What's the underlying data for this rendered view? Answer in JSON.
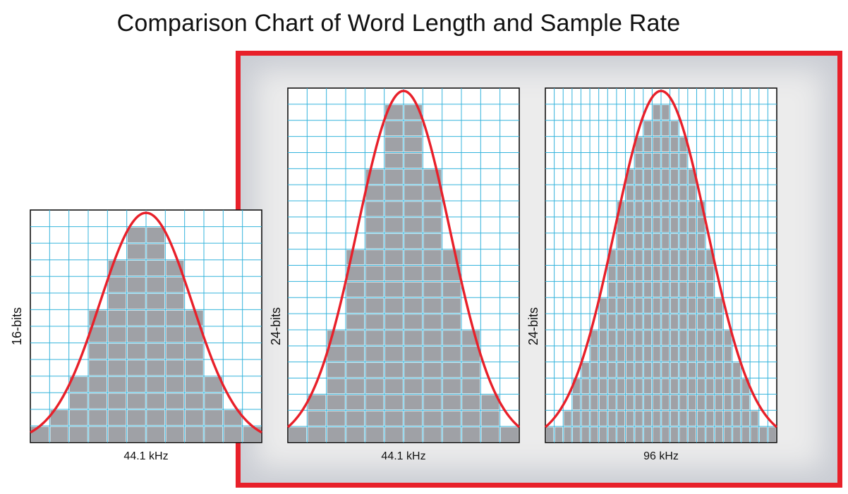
{
  "title": "Comparison Chart of Word Length and Sample Rate",
  "colors": {
    "curve": "#e8202a",
    "grid": "#35b4dc",
    "cells": "#9fa1a6",
    "highlight": "#e8202a"
  },
  "panels": [
    {
      "word_length_label": "16-bits",
      "sample_rate_label": "44.1 kHz",
      "columns": 12,
      "rows": 14,
      "highlighted": false
    },
    {
      "word_length_label": "24-bits",
      "sample_rate_label": "44.1 kHz",
      "columns": 12,
      "rows": 22,
      "highlighted": true
    },
    {
      "word_length_label": "24-bits",
      "sample_rate_label": "96 kHz",
      "columns": 26,
      "rows": 22,
      "highlighted": true
    }
  ]
}
